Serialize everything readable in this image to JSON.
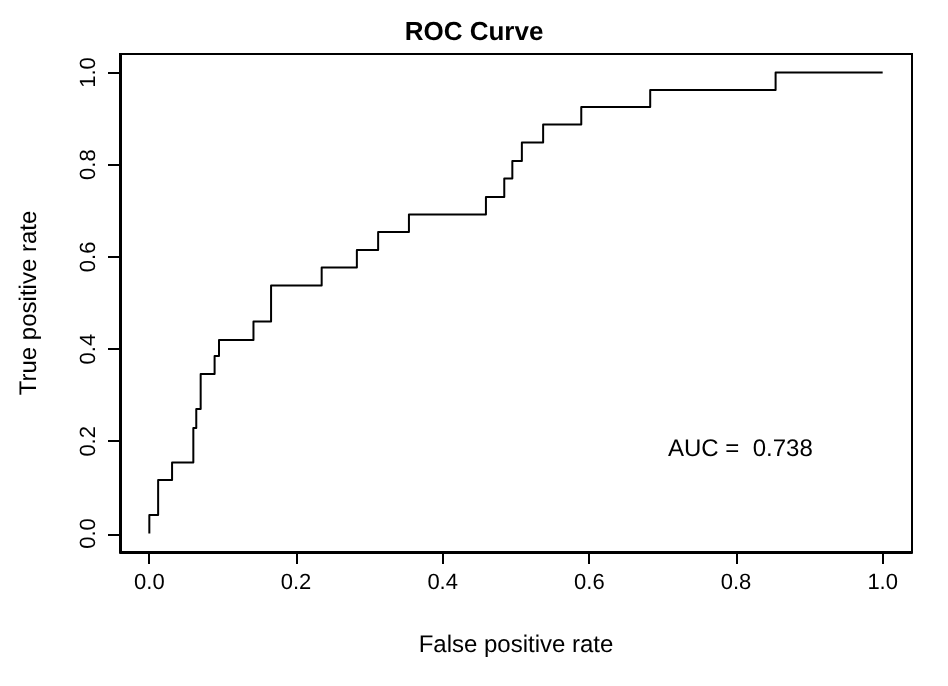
{
  "chart_data": {
    "type": "step",
    "title": "ROC Curve",
    "xlabel": "False positive rate",
    "ylabel": "True positive rate",
    "x": [
      0,
      0,
      0.012,
      0.031,
      0.06,
      0.064,
      0.07,
      0.089,
      0.095,
      0.142,
      0.166,
      0.235,
      0.283,
      0.312,
      0.354,
      0.459,
      0.484,
      0.495,
      0.508,
      0.537,
      0.589,
      0.683,
      0.854,
      1
    ],
    "series": [
      {
        "color": "#000000",
        "values": [
          0,
          0.04,
          0.116,
          0.154,
          0.229,
          0.27,
          0.346,
          0.385,
          0.42,
          0.46,
          0.538,
          0.577,
          0.615,
          0.654,
          0.692,
          0.73,
          0.77,
          0.808,
          0.848,
          0.887,
          0.925,
          0.962,
          1,
          1
        ]
      }
    ],
    "xlim": [
      -0.04,
      1.04
    ],
    "ylim": [
      -0.04,
      1.04
    ],
    "xticks": [
      {
        "value": 0,
        "label": "0.0"
      },
      0.2,
      0.4,
      0.6,
      0.8,
      {
        "value": 1,
        "label": "1.0"
      }
    ],
    "yticks": [
      {
        "value": 0,
        "label": "0.0"
      },
      0.2,
      0.4,
      0.6,
      0.8,
      {
        "value": 1,
        "label": "1.0"
      }
    ],
    "annotations": [
      "AUC =  0.738"
    ],
    "marker": "none",
    "line_style": "solid"
  }
}
